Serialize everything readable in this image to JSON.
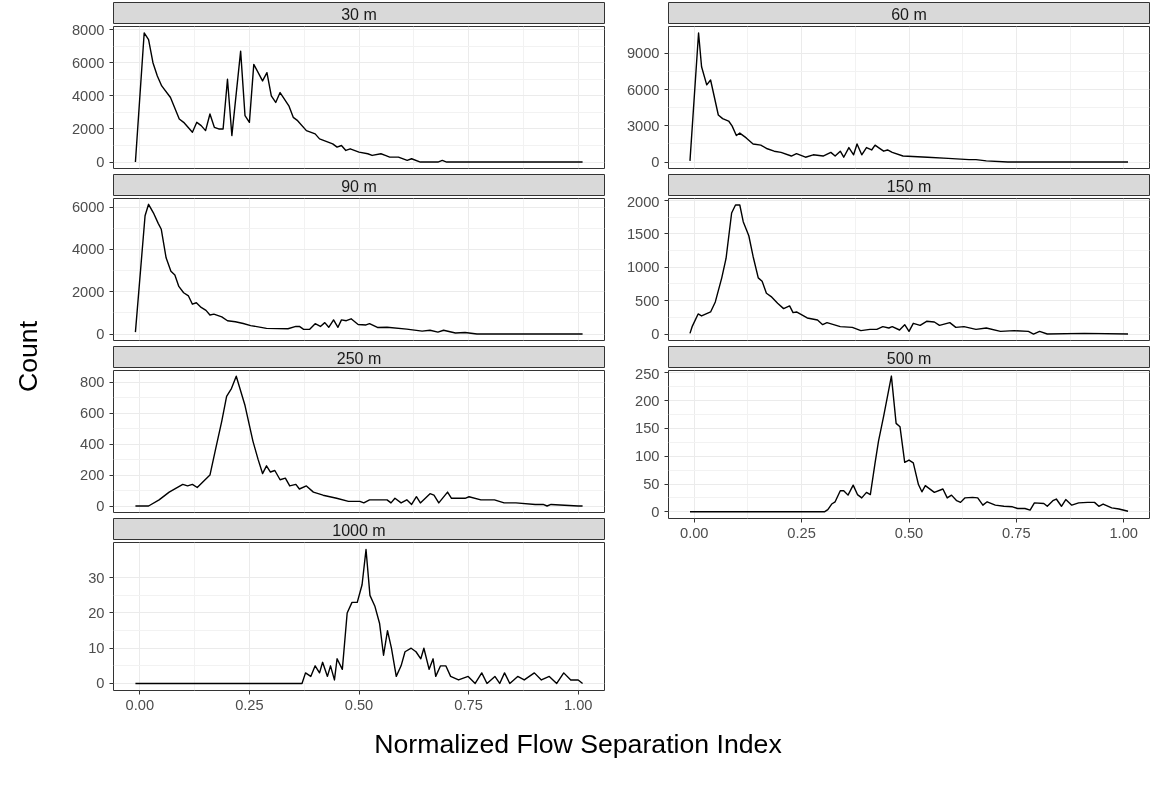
{
  "chart_data": [
    {
      "type": "line",
      "title": "30 m",
      "tick_labels": "y",
      "grid": true,
      "xlim": [
        -0.06,
        1.06
      ],
      "ylim": [
        -390,
        8190
      ],
      "xticks": [
        0,
        0.25,
        0.5,
        0.75,
        1
      ],
      "yticks": [
        0,
        2000,
        4000,
        6000,
        8000
      ],
      "series": [
        {
          "color": "#000000",
          "x": [
            -0.01,
            0.01,
            0.02,
            0.03,
            0.04,
            0.05,
            0.07,
            0.09,
            0.1,
            0.12,
            0.13,
            0.14,
            0.15,
            0.16,
            0.17,
            0.18,
            0.19,
            0.2,
            0.21,
            0.23,
            0.24,
            0.25,
            0.26,
            0.28,
            0.29,
            0.3,
            0.31,
            0.32,
            0.34,
            0.35,
            0.36,
            0.38,
            0.4,
            0.41,
            0.44,
            0.45,
            0.46,
            0.47,
            0.48,
            0.5,
            0.52,
            0.53,
            0.55,
            0.56,
            0.57,
            0.59,
            0.61,
            0.62,
            0.64,
            0.68,
            0.69,
            0.7,
            1.01
          ],
          "values": [
            0,
            7800,
            7400,
            6000,
            5200,
            4600,
            3900,
            2600,
            2400,
            1800,
            2400,
            2200,
            1900,
            2900,
            2100,
            2000,
            2000,
            5000,
            1600,
            6700,
            2800,
            2400,
            5900,
            4900,
            5400,
            4000,
            3600,
            4200,
            3400,
            2700,
            2500,
            1900,
            1700,
            1400,
            1100,
            900,
            1000,
            700,
            800,
            600,
            500,
            400,
            500,
            400,
            300,
            300,
            100,
            200,
            0,
            0,
            100,
            0,
            0
          ]
        }
      ]
    },
    {
      "type": "line",
      "title": "60 m",
      "tick_labels": "y",
      "grid": true,
      "xlim": [
        -0.06,
        1.06
      ],
      "ylim": [
        -535,
        11235
      ],
      "xticks": [
        0,
        0.25,
        0.5,
        0.75,
        1
      ],
      "yticks": [
        0,
        3000,
        6000,
        9000
      ],
      "series": [
        {
          "color": "#000000",
          "x": [
            -0.01,
            0.01,
            0.017,
            0.029,
            0.038,
            0.056,
            0.066,
            0.08,
            0.088,
            0.098,
            0.106,
            0.121,
            0.137,
            0.155,
            0.17,
            0.186,
            0.202,
            0.226,
            0.238,
            0.259,
            0.277,
            0.3,
            0.318,
            0.328,
            0.34,
            0.348,
            0.36,
            0.371,
            0.379,
            0.39,
            0.401,
            0.413,
            0.421,
            0.429,
            0.441,
            0.45,
            0.461,
            0.486,
            0.543,
            0.591,
            0.64,
            0.656,
            0.68,
            0.73,
            1.01
          ],
          "values": [
            100,
            10700,
            7900,
            6400,
            6800,
            3900,
            3600,
            3400,
            3000,
            2200,
            2400,
            2000,
            1500,
            1400,
            1100,
            900,
            800,
            500,
            700,
            400,
            600,
            500,
            800,
            500,
            900,
            400,
            1200,
            600,
            1500,
            600,
            1200,
            1000,
            1400,
            1200,
            900,
            1000,
            800,
            500,
            400,
            300,
            200,
            200,
            100,
            0,
            0
          ]
        }
      ]
    },
    {
      "type": "line",
      "title": "90 m",
      "ylabel": "Count",
      "tick_labels": "y",
      "grid": true,
      "xlim": [
        -0.06,
        1.06
      ],
      "ylim": [
        -305,
        6405
      ],
      "xticks": [
        0,
        0.25,
        0.5,
        0.75,
        1
      ],
      "yticks": [
        0,
        2000,
        4000,
        6000
      ],
      "series": [
        {
          "color": "#000000",
          "x": [
            -0.01,
            0.012,
            0.02,
            0.031,
            0.042,
            0.049,
            0.06,
            0.071,
            0.08,
            0.089,
            0.1,
            0.111,
            0.12,
            0.129,
            0.14,
            0.151,
            0.16,
            0.169,
            0.187,
            0.2,
            0.218,
            0.236,
            0.253,
            0.289,
            0.338,
            0.356,
            0.364,
            0.373,
            0.387,
            0.4,
            0.412,
            0.422,
            0.431,
            0.442,
            0.452,
            0.46,
            0.471,
            0.482,
            0.498,
            0.516,
            0.524,
            0.542,
            0.564,
            0.609,
            0.644,
            0.662,
            0.68,
            0.693,
            0.72,
            0.742,
            0.769,
            1.01
          ],
          "values": [
            90,
            5590,
            6130,
            5730,
            5230,
            4950,
            3600,
            2970,
            2790,
            2250,
            1950,
            1800,
            1410,
            1480,
            1260,
            1120,
            900,
            940,
            810,
            630,
            580,
            500,
            400,
            270,
            250,
            360,
            360,
            230,
            220,
            490,
            360,
            540,
            320,
            670,
            320,
            670,
            630,
            720,
            450,
            430,
            490,
            310,
            320,
            230,
            140,
            180,
            90,
            180,
            50,
            70,
            0,
            0
          ]
        }
      ]
    },
    {
      "type": "line",
      "title": "150 m",
      "tick_labels": "y",
      "grid": true,
      "xlim": [
        -0.06,
        1.06
      ],
      "ylim": [
        -97,
        2027
      ],
      "xticks": [
        0,
        0.25,
        0.5,
        0.75,
        1
      ],
      "yticks": [
        0,
        500,
        1000,
        1500,
        2000
      ],
      "series": [
        {
          "color": "#000000",
          "x": [
            -0.01,
            -0.005,
            0.009,
            0.017,
            0.038,
            0.049,
            0.064,
            0.074,
            0.087,
            0.096,
            0.106,
            0.114,
            0.127,
            0.137,
            0.149,
            0.158,
            0.168,
            0.179,
            0.194,
            0.208,
            0.222,
            0.23,
            0.238,
            0.263,
            0.287,
            0.299,
            0.309,
            0.34,
            0.368,
            0.388,
            0.409,
            0.425,
            0.439,
            0.453,
            0.461,
            0.478,
            0.49,
            0.5,
            0.51,
            0.526,
            0.541,
            0.559,
            0.571,
            0.595,
            0.609,
            0.628,
            0.656,
            0.68,
            0.713,
            0.745,
            0.778,
            0.79,
            0.804,
            0.822,
            0.908,
            1.01
          ],
          "values": [
            10,
            110,
            300,
            270,
            330,
            480,
            840,
            1130,
            1810,
            1930,
            1930,
            1680,
            1470,
            1160,
            840,
            790,
            610,
            560,
            460,
            380,
            420,
            320,
            330,
            240,
            210,
            140,
            170,
            110,
            100,
            50,
            70,
            70,
            110,
            90,
            110,
            60,
            140,
            40,
            160,
            130,
            190,
            180,
            130,
            170,
            100,
            110,
            70,
            90,
            40,
            50,
            40,
            0,
            40,
            0,
            10,
            0
          ]
        }
      ]
    },
    {
      "type": "line",
      "title": "250 m",
      "tick_labels": "y",
      "grid": true,
      "xlim": [
        -0.06,
        1.06
      ],
      "ylim": [
        -42,
        877
      ],
      "xticks": [
        0,
        0.25,
        0.5,
        0.75,
        1
      ],
      "yticks": [
        0,
        200,
        400,
        600,
        800
      ],
      "series": [
        {
          "color": "#000000",
          "x": [
            -0.01,
            0.02,
            0.044,
            0.067,
            0.098,
            0.109,
            0.12,
            0.131,
            0.142,
            0.16,
            0.173,
            0.187,
            0.198,
            0.209,
            0.22,
            0.24,
            0.258,
            0.27,
            0.28,
            0.289,
            0.298,
            0.308,
            0.32,
            0.332,
            0.342,
            0.356,
            0.364,
            0.38,
            0.396,
            0.418,
            0.449,
            0.476,
            0.502,
            0.511,
            0.524,
            0.547,
            0.564,
            0.573,
            0.582,
            0.596,
            0.609,
            0.62,
            0.631,
            0.64,
            0.662,
            0.671,
            0.682,
            0.702,
            0.711,
            0.742,
            0.751,
            0.778,
            0.809,
            0.831,
            0.858,
            0.902,
            0.92,
            0.929,
            0.938,
            1.0,
            1.01
          ],
          "values": [
            0,
            0,
            40,
            90,
            140,
            130,
            140,
            120,
            150,
            200,
            370,
            550,
            710,
            760,
            840,
            650,
            420,
            300,
            210,
            260,
            220,
            230,
            170,
            180,
            130,
            140,
            110,
            130,
            90,
            70,
            50,
            30,
            30,
            20,
            40,
            40,
            40,
            20,
            50,
            20,
            40,
            10,
            60,
            20,
            80,
            70,
            20,
            90,
            50,
            50,
            60,
            40,
            40,
            20,
            20,
            10,
            10,
            0,
            10,
            0,
            0
          ]
        }
      ]
    },
    {
      "type": "line",
      "title": "500 m",
      "grid": true,
      "xlim": [
        -0.06,
        1.06
      ],
      "ylim": [
        -12,
        254
      ],
      "xticks": [
        {
          "value": 0,
          "label": "0.00"
        },
        {
          "value": 0.25,
          "label": "0.25"
        },
        {
          "value": 0.5,
          "label": "0.50"
        },
        {
          "value": 0.75,
          "label": "0.75"
        },
        {
          "value": 1,
          "label": "1.00"
        }
      ],
      "yticks": [
        0,
        50,
        100,
        150,
        200,
        250
      ],
      "series": [
        {
          "color": "#000000",
          "x": [
            -0.01,
            0.303,
            0.311,
            0.32,
            0.328,
            0.34,
            0.348,
            0.358,
            0.37,
            0.38,
            0.39,
            0.401,
            0.41,
            0.421,
            0.429,
            0.441,
            0.459,
            0.47,
            0.479,
            0.49,
            0.5,
            0.51,
            0.522,
            0.53,
            0.538,
            0.559,
            0.579,
            0.589,
            0.599,
            0.611,
            0.62,
            0.63,
            0.648,
            0.66,
            0.672,
            0.682,
            0.701,
            0.721,
            0.741,
            0.753,
            0.77,
            0.782,
            0.792,
            0.814,
            0.822,
            0.835,
            0.843,
            0.855,
            0.865,
            0.879,
            0.895,
            0.916,
            0.932,
            0.942,
            0.952,
            0.972,
            0.989,
            1.01
          ],
          "values": [
            0,
            0,
            4,
            14,
            18,
            38,
            38,
            30,
            48,
            31,
            25,
            35,
            31,
            88,
            127,
            172,
            244,
            159,
            153,
            89,
            93,
            88,
            49,
            36,
            47,
            35,
            41,
            25,
            30,
            20,
            17,
            25,
            26,
            25,
            12,
            18,
            12,
            10,
            9,
            6,
            6,
            3,
            16,
            15,
            10,
            20,
            23,
            10,
            22,
            12,
            16,
            17,
            17,
            10,
            14,
            7,
            5,
            1
          ]
        }
      ]
    },
    {
      "type": "line",
      "title": "1000 m",
      "xlabel": "Normalized Flow Separation Index",
      "grid": true,
      "xlim": [
        -0.06,
        1.06
      ],
      "ylim": [
        -2,
        40
      ],
      "xticks": [
        {
          "value": 0,
          "label": "0.00"
        },
        {
          "value": 0.25,
          "label": "0.25"
        },
        {
          "value": 0.5,
          "label": "0.50"
        },
        {
          "value": 0.75,
          "label": "0.75"
        },
        {
          "value": 1,
          "label": "1.00"
        }
      ],
      "yticks": [
        0,
        10,
        20,
        30
      ],
      "series": [
        {
          "color": "#000000",
          "x": [
            -0.01,
            0.37,
            0.378,
            0.39,
            0.4,
            0.41,
            0.417,
            0.428,
            0.435,
            0.444,
            0.45,
            0.462,
            0.473,
            0.484,
            0.496,
            0.507,
            0.516,
            0.525,
            0.536,
            0.547,
            0.556,
            0.565,
            0.574,
            0.585,
            0.596,
            0.605,
            0.619,
            0.63,
            0.641,
            0.648,
            0.66,
            0.669,
            0.675,
            0.686,
            0.698,
            0.709,
            0.727,
            0.749,
            0.765,
            0.78,
            0.792,
            0.81,
            0.821,
            0.832,
            0.844,
            0.862,
            0.877,
            0.9,
            0.916,
            0.934,
            0.951,
            0.967,
            0.983,
            1.0,
            1.01
          ],
          "values": [
            0,
            0,
            3,
            2,
            5,
            3,
            6,
            2,
            5,
            1,
            7,
            4,
            20,
            23,
            23,
            28,
            38,
            25,
            22,
            17,
            8,
            15,
            10,
            2,
            5,
            9,
            10,
            9,
            7,
            10,
            4,
            7,
            2,
            5,
            5,
            2,
            1,
            2,
            0,
            3,
            0,
            2,
            0,
            3,
            0,
            2,
            1,
            3,
            1,
            2,
            0,
            3,
            1,
            1,
            0
          ]
        }
      ]
    }
  ]
}
